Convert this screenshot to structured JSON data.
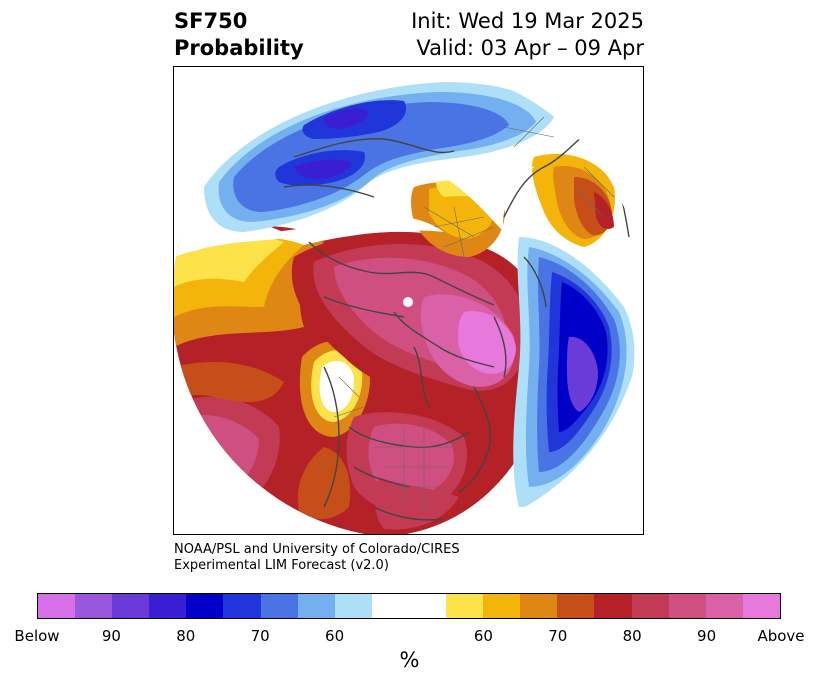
{
  "title": {
    "line1": "SF750",
    "line2": "Probability"
  },
  "subtitle": {
    "init": "Init: Wed 19 Mar 2025",
    "valid": "Valid: 03 Apr – 09 Apr"
  },
  "credit": {
    "line1": "NOAA/PSL and University of Colorado/CIRES",
    "line2": "Experimental LIM Forecast (v2.0)"
  },
  "colorbar": {
    "bins": [
      "#d66fe8",
      "#9a57de",
      "#6a3bd8",
      "#3a1ed3",
      "#0000c8",
      "#2036da",
      "#4a73e3",
      "#74b0f0",
      "#aedff8",
      "#ffffff",
      "#ffffff",
      "#fee24a",
      "#f3b50a",
      "#df8714",
      "#c64f19",
      "#b42126",
      "#c33a55",
      "#cf5080",
      "#da61a8",
      "#e779dc"
    ],
    "tick_labels": [
      "Below",
      "90",
      "80",
      "70",
      "60",
      "60",
      "70",
      "80",
      "90",
      "Above"
    ],
    "unit": "%"
  },
  "map": {
    "projection": "north-polar-stereographic",
    "variable": "probability of below/above normal 750 hPa streamfunction",
    "features": [
      "blue 70-90% below cell over northern Eurasia / Siberia",
      "white gap near 60% band ring",
      "red-pink 80-Above cell over Arctic Ocean and Canada",
      "pink Above maximum over Hudson Bay region",
      "deep blue Below cell over North Atlantic",
      "orange-yellow near Europe and Greenland",
      "pink Above over central United States",
      "white pole marker"
    ]
  }
}
